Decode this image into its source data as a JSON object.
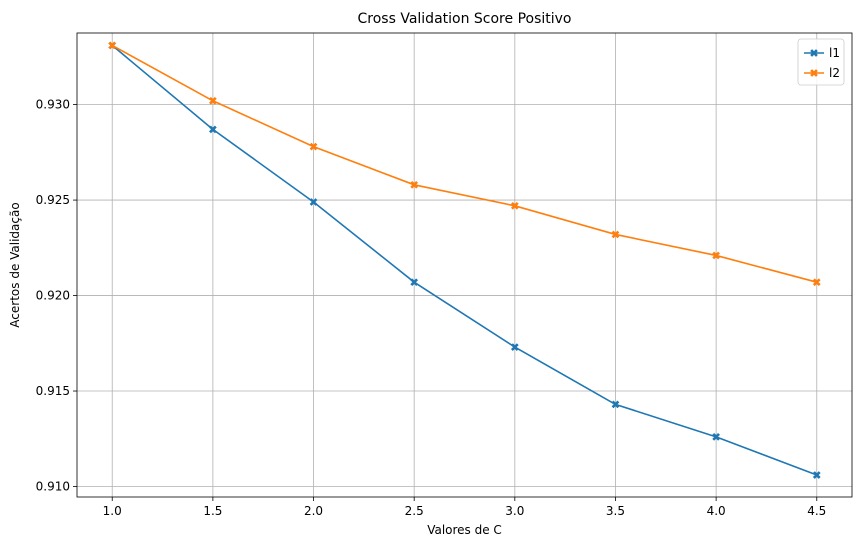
{
  "chart_data": {
    "type": "line",
    "title": "Cross Validation Score Positivo",
    "xlabel": "Valores de C",
    "ylabel": "Acertos de Validação",
    "x": [
      1.0,
      1.5,
      2.0,
      2.5,
      3.0,
      3.5,
      4.0,
      4.5
    ],
    "x_tick_labels": [
      "1.0",
      "1.5",
      "2.0",
      "2.5",
      "3.0",
      "3.5",
      "4.0",
      "4.5"
    ],
    "y_ticks": [
      0.91,
      0.915,
      0.92,
      0.925,
      0.93
    ],
    "y_tick_labels": [
      "0.910",
      "0.915",
      "0.920",
      "0.925",
      "0.930"
    ],
    "xlim": [
      0.825,
      4.675
    ],
    "ylim": [
      0.90945,
      0.93375
    ],
    "grid": true,
    "legend_position": "top-right",
    "series": [
      {
        "name": "l1",
        "color": "#1f77b4",
        "marker": "x-filled",
        "values": [
          0.9331,
          0.9287,
          0.9249,
          0.9207,
          0.9173,
          0.9143,
          0.9126,
          0.9106
        ]
      },
      {
        "name": "l2",
        "color": "#ff7f0e",
        "marker": "x-filled",
        "values": [
          0.9331,
          0.9302,
          0.9278,
          0.9258,
          0.9247,
          0.9232,
          0.9221,
          0.9207
        ]
      }
    ]
  }
}
